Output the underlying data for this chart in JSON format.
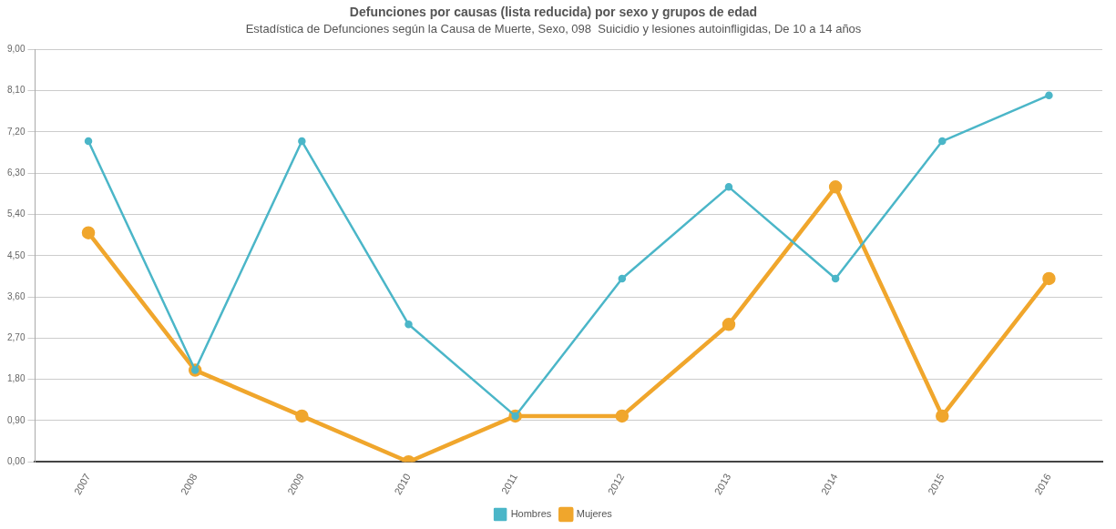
{
  "chart_data": {
    "type": "line",
    "title": "Defunciones por causas (lista reducida) por sexo y grupos de edad",
    "subtitle": "Estadística de Defunciones según la Causa de Muerte, Sexo, 098  Suicidio y lesiones autoinfligidas, De 10 a 14 años",
    "categories": [
      "2007",
      "2008",
      "2009",
      "2010",
      "2011",
      "2012",
      "2013",
      "2014",
      "2015",
      "2016"
    ],
    "series": [
      {
        "name": "Hombres",
        "color": "#4bb6c8",
        "values": [
          7,
          2,
          7,
          3,
          1,
          4,
          6,
          4,
          7,
          8
        ]
      },
      {
        "name": "Mujeres",
        "color": "#f0a62c",
        "values": [
          5,
          2,
          1,
          0,
          1,
          1,
          3,
          6,
          1,
          4
        ]
      }
    ],
    "ylim": [
      0,
      9
    ],
    "yticks": [
      {
        "value": 0,
        "label": "0,00"
      },
      {
        "value": 0.9,
        "label": "0,90"
      },
      {
        "value": 1.8,
        "label": "1,80"
      },
      {
        "value": 2.7,
        "label": "2,70"
      },
      {
        "value": 3.6,
        "label": "3,60"
      },
      {
        "value": 4.5,
        "label": "4,50"
      },
      {
        "value": 5.4,
        "label": "5,40"
      },
      {
        "value": 6.3,
        "label": "6,30"
      },
      {
        "value": 7.2,
        "label": "7,20"
      },
      {
        "value": 8.1,
        "label": "8,10"
      },
      {
        "value": 9,
        "label": "9,00"
      }
    ],
    "grid": "y",
    "legend": "bottom",
    "marker": "circle",
    "line_style": "solid"
  }
}
